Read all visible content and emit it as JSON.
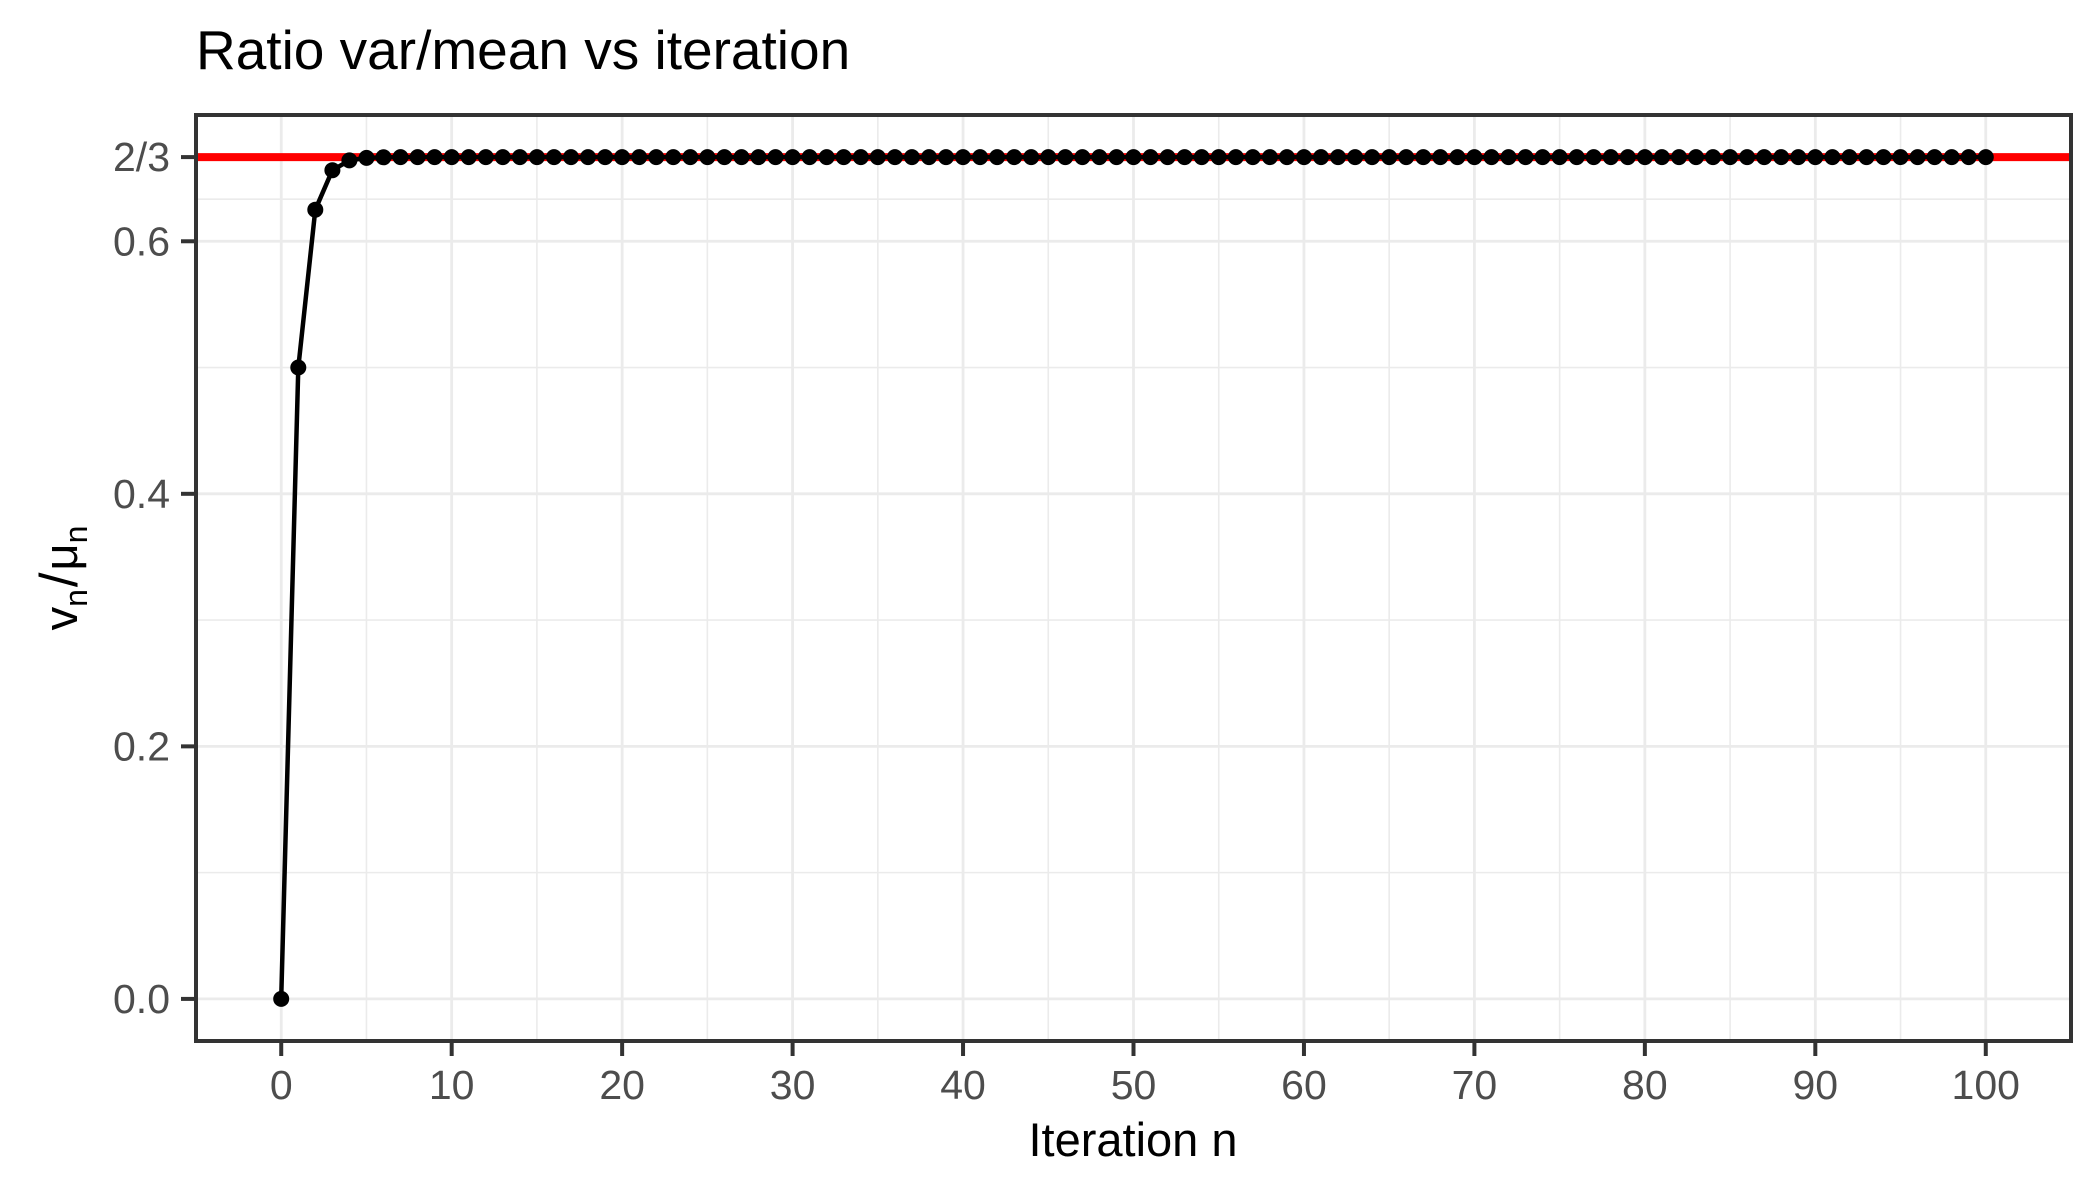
{
  "chart_data": {
    "type": "line",
    "title": "Ratio var/mean vs iteration",
    "xlabel": "Iteration n",
    "ylabel": "v_n / μ_n",
    "ylabel_parts": {
      "num_base": "v",
      "num_sub": "n",
      "frac_slash": "/",
      "den_base": "μ",
      "den_sub": "n"
    },
    "series_name": "ratio var/mean",
    "x": [
      0,
      1,
      2,
      3,
      4,
      5,
      6,
      7,
      8,
      9,
      10,
      11,
      12,
      13,
      14,
      15,
      16,
      17,
      18,
      19,
      20,
      21,
      22,
      23,
      24,
      25,
      26,
      27,
      28,
      29,
      30,
      31,
      32,
      33,
      34,
      35,
      36,
      37,
      38,
      39,
      40,
      41,
      42,
      43,
      44,
      45,
      46,
      47,
      48,
      49,
      50,
      51,
      52,
      53,
      54,
      55,
      56,
      57,
      58,
      59,
      60,
      61,
      62,
      63,
      64,
      65,
      66,
      67,
      68,
      69,
      70,
      71,
      72,
      73,
      74,
      75,
      76,
      77,
      78,
      79,
      80,
      81,
      82,
      83,
      84,
      85,
      86,
      87,
      88,
      89,
      90,
      91,
      92,
      93,
      94,
      95,
      96,
      97,
      98,
      99,
      100
    ],
    "values": [
      0,
      0.5,
      0.625,
      0.65625,
      0.664063,
      0.666016,
      0.666504,
      0.666626,
      0.666656,
      0.666664,
      0.666666,
      0.666667,
      0.666667,
      0.666667,
      0.666667,
      0.666667,
      0.666667,
      0.666667,
      0.666667,
      0.666667,
      0.666667,
      0.666667,
      0.666667,
      0.666667,
      0.666667,
      0.666667,
      0.666667,
      0.666667,
      0.666667,
      0.666667,
      0.666667,
      0.666667,
      0.666667,
      0.666667,
      0.666667,
      0.666667,
      0.666667,
      0.666667,
      0.666667,
      0.666667,
      0.666667,
      0.666667,
      0.666667,
      0.666667,
      0.666667,
      0.666667,
      0.666667,
      0.666667,
      0.666667,
      0.666667,
      0.666667,
      0.666667,
      0.666667,
      0.666667,
      0.666667,
      0.666667,
      0.666667,
      0.666667,
      0.666667,
      0.666667,
      0.666667,
      0.666667,
      0.666667,
      0.666667,
      0.666667,
      0.666667,
      0.666667,
      0.666667,
      0.666667,
      0.666667,
      0.666667,
      0.666667,
      0.666667,
      0.666667,
      0.666667,
      0.666667,
      0.666667,
      0.666667,
      0.666667,
      0.666667,
      0.666667,
      0.666667,
      0.666667,
      0.666667,
      0.666667,
      0.666667,
      0.666667,
      0.666667,
      0.666667,
      0.666667,
      0.666667,
      0.666667,
      0.666667,
      0.666667,
      0.666667,
      0.666667,
      0.666667,
      0.666667,
      0.666667,
      0.666667,
      0.666667
    ],
    "reference_line": {
      "value": 0.6666667,
      "label": "2/3",
      "color": "#FF0000"
    },
    "xlim": [
      -5,
      105
    ],
    "ylim": [
      -0.0333333,
      0.7
    ],
    "x_ticks": [
      {
        "label": "0",
        "value": 0
      },
      {
        "label": "10",
        "value": 10
      },
      {
        "label": "20",
        "value": 20
      },
      {
        "label": "30",
        "value": 30
      },
      {
        "label": "40",
        "value": 40
      },
      {
        "label": "50",
        "value": 50
      },
      {
        "label": "60",
        "value": 60
      },
      {
        "label": "70",
        "value": 70
      },
      {
        "label": "80",
        "value": 80
      },
      {
        "label": "90",
        "value": 90
      },
      {
        "label": "100",
        "value": 100
      }
    ],
    "y_ticks": [
      {
        "label": "0.0",
        "value": 0
      },
      {
        "label": "0.2",
        "value": 0.2
      },
      {
        "label": "0.4",
        "value": 0.4
      },
      {
        "label": "0.6",
        "value": 0.6
      },
      {
        "label": "2/3",
        "value": 0.6666667
      }
    ],
    "x_minor_gridlines": [
      5,
      15,
      25,
      35,
      45,
      55,
      65,
      75,
      85,
      95
    ],
    "y_minor_gridlines": [
      0.1,
      0.3,
      0.5,
      0.6333333
    ],
    "grid": true,
    "legend": "none",
    "colors": {
      "point": "#000000",
      "line": "#000000",
      "grid": "#EBEBEB",
      "panel_border": "#333333",
      "tick": "#333333",
      "tick_label": "#4D4D4D",
      "axis_title": "#000000",
      "background": "#FFFFFF"
    }
  }
}
